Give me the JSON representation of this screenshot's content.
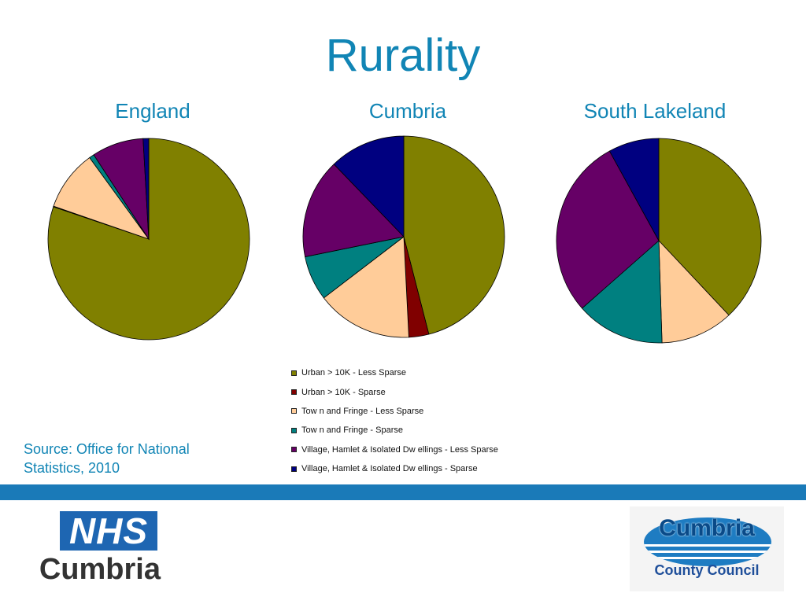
{
  "slide": {
    "title": "Rurality",
    "source": "Source: Office for National Statistics, 2010"
  },
  "chart_data": [
    {
      "type": "pie",
      "title": "England",
      "categories": [
        "Urban > 10K - Less Sparse",
        "Urban > 10K - Sparse",
        "Tow n and Fringe - Less Sparse",
        "Tow n and Fringe - Sparse",
        "Village, Hamlet & Isolated Dw ellings - Less Sparse",
        "Village, Hamlet & Isolated Dw ellings - Sparse"
      ],
      "values": [
        80.2,
        0.1,
        9.7,
        0.8,
        8.3,
        0.9
      ]
    },
    {
      "type": "pie",
      "title": "Cumbria",
      "categories": [
        "Urban > 10K - Less Sparse",
        "Urban > 10K - Sparse",
        "Tow n and Fringe - Less Sparse",
        "Tow n and Fringe - Sparse",
        "Village, Hamlet & Isolated Dw ellings - Less Sparse",
        "Village, Hamlet & Isolated Dw ellings - Sparse"
      ],
      "values": [
        46.0,
        3.2,
        15.4,
        7.2,
        16.0,
        12.2
      ]
    },
    {
      "type": "pie",
      "title": "South Lakeland",
      "categories": [
        "Urban > 10K - Less Sparse",
        "Urban > 10K - Sparse",
        "Tow n and Fringe - Less Sparse",
        "Tow n and Fringe - Sparse",
        "Village, Hamlet & Isolated Dw ellings - Less Sparse",
        "Village, Hamlet & Isolated Dw ellings - Sparse"
      ],
      "values": [
        38.0,
        0.0,
        11.5,
        14.0,
        28.5,
        8.0
      ]
    }
  ],
  "legend": {
    "colors": [
      "#808000",
      "#800000",
      "#ffcc99",
      "#008080",
      "#660066",
      "#000080"
    ],
    "items": [
      "Urban > 10K - Less Sparse",
      "Urban > 10K - Sparse",
      "Tow n and Fringe - Less Sparse",
      "Tow n and Fringe - Sparse",
      "Village, Hamlet & Isolated Dw ellings - Less Sparse",
      "Village, Hamlet & Isolated Dw ellings - Sparse"
    ]
  },
  "logos": {
    "nhs_mark": "NHS",
    "nhs_name": "Cumbria",
    "council_name": "Cumbria",
    "council_sub": "County Council"
  },
  "colors": {
    "title": "#1185b5",
    "band": "#1a7ab8"
  }
}
